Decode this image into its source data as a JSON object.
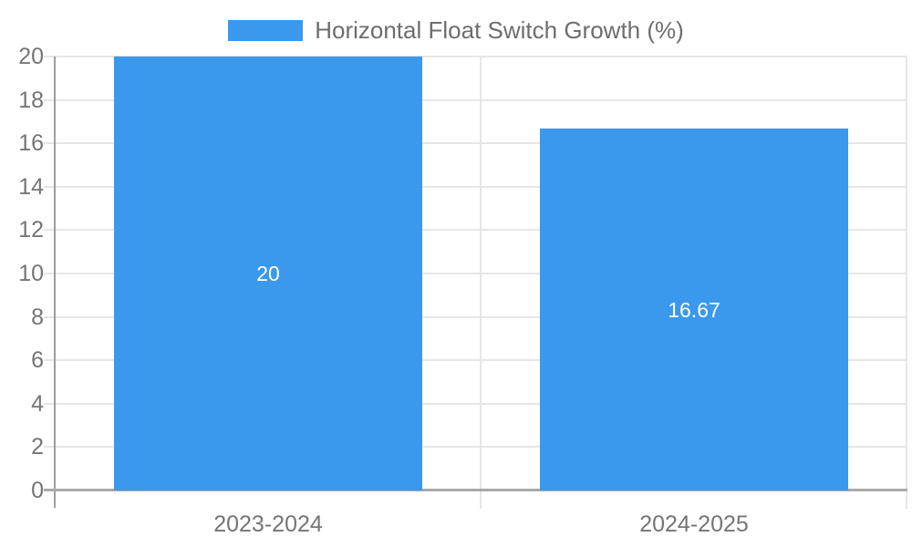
{
  "colors": {
    "bar": "#3a99ec",
    "gridline": "#e6e6e6",
    "y_axis_line": "#9e9e9e",
    "x_axis_line": "#a9a9a9",
    "tick_label_text": "#757575",
    "legend_text": "#6d6d6d",
    "value_label_text": "#ffffff",
    "background": "#ffffff"
  },
  "chart_data": {
    "type": "bar",
    "title": "",
    "legend": "Horizontal Float Switch Growth (%)",
    "legend_position": "top-center",
    "categories": [
      "2023-2024",
      "2024-2025"
    ],
    "values": [
      20,
      16.67
    ],
    "value_labels": [
      "20",
      "16.67"
    ],
    "xlabel": "",
    "ylabel": "",
    "ylim": [
      0,
      20
    ],
    "ytick_step": 2,
    "yticks": [
      0,
      2,
      4,
      6,
      8,
      10,
      12,
      14,
      16,
      18,
      20
    ],
    "grid": true
  }
}
